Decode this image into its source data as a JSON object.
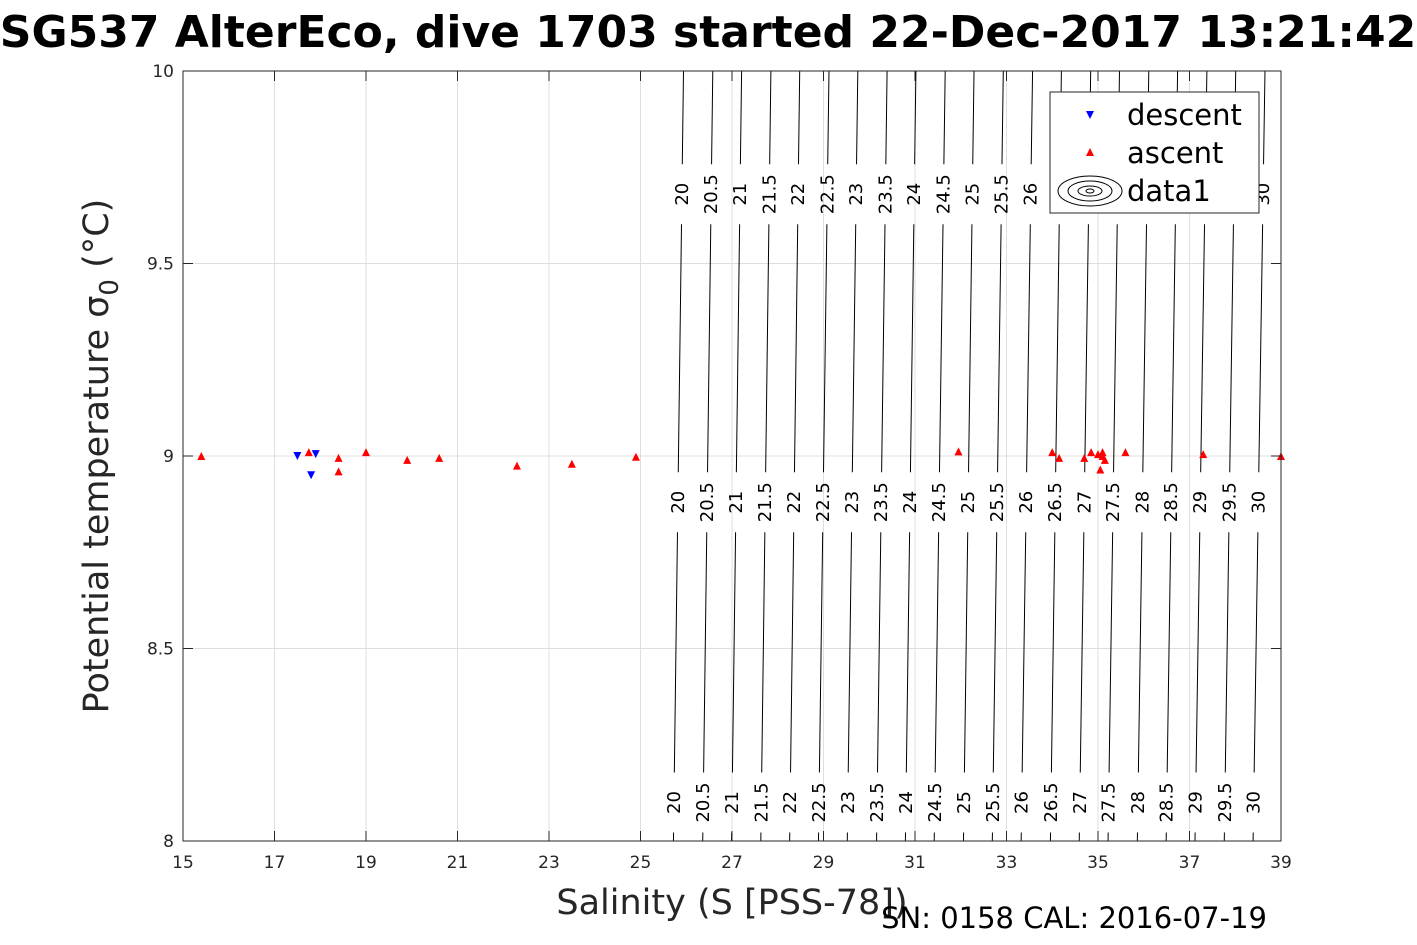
{
  "title": "SG537 AlterEco, dive 1703 started 22-Dec-2017 13:21:42",
  "footer": "SN: 0158  CAL: 2016-07-19",
  "chart_data": {
    "type": "scatter",
    "title": "SG537 AlterEco, dive 1703 started 22-Dec-2017 13:21:42",
    "xlabel": "Salinity (S [PSS-78])",
    "ylabel_main": "Potential temperature σ",
    "ylabel_sub": "0",
    "ylabel_unit": " (°C)",
    "xlim": [
      15,
      39
    ],
    "ylim": [
      8,
      10
    ],
    "xticks": [
      15,
      17,
      19,
      21,
      23,
      25,
      27,
      29,
      31,
      33,
      35,
      37,
      39
    ],
    "yticks": [
      8,
      8.5,
      9,
      9.5,
      10
    ],
    "ytick_labels": [
      "8",
      "8.5",
      "9",
      "9.5",
      "10"
    ],
    "grid": true,
    "legend_position": "top-right",
    "series": [
      {
        "name": "descent",
        "marker": "triangle-down",
        "color": "#0000ff",
        "points": [
          [
            17.5,
            9.0
          ],
          [
            17.9,
            9.005
          ],
          [
            17.8,
            8.95
          ]
        ]
      },
      {
        "name": "ascent",
        "marker": "triangle-up",
        "color": "#ff0000",
        "points": [
          [
            15.4,
            9.0
          ],
          [
            17.75,
            9.01
          ],
          [
            18.4,
            8.96
          ],
          [
            18.4,
            8.995
          ],
          [
            19.0,
            9.01
          ],
          [
            19.9,
            8.99
          ],
          [
            20.6,
            8.995
          ],
          [
            22.3,
            8.975
          ],
          [
            23.5,
            8.98
          ],
          [
            24.9,
            8.998
          ],
          [
            31.95,
            9.012
          ],
          [
            34.0,
            9.01
          ],
          [
            34.15,
            8.995
          ],
          [
            34.7,
            8.995
          ],
          [
            34.85,
            9.01
          ],
          [
            35.0,
            9.005
          ],
          [
            35.05,
            8.965
          ],
          [
            35.1,
            9.01
          ],
          [
            35.15,
            8.99
          ],
          [
            35.1,
            9.0
          ],
          [
            35.6,
            9.01
          ],
          [
            37.3,
            9.005
          ],
          [
            39.0,
            9.0
          ]
        ]
      },
      {
        "name": "data1",
        "marker": "contour",
        "color": "#000000",
        "points": []
      }
    ],
    "contours": [
      {
        "level": 20,
        "x_top": 25.94,
        "x_bottom": 25.72
      },
      {
        "level": 20.5,
        "x_top": 26.58,
        "x_bottom": 26.36
      },
      {
        "level": 21,
        "x_top": 27.21,
        "x_bottom": 26.99
      },
      {
        "level": 21.5,
        "x_top": 27.85,
        "x_bottom": 27.63
      },
      {
        "level": 22,
        "x_top": 28.48,
        "x_bottom": 28.26
      },
      {
        "level": 22.5,
        "x_top": 29.12,
        "x_bottom": 28.89
      },
      {
        "level": 23,
        "x_top": 29.75,
        "x_bottom": 29.52
      },
      {
        "level": 23.5,
        "x_top": 30.39,
        "x_bottom": 30.16
      },
      {
        "level": 24,
        "x_top": 31.02,
        "x_bottom": 30.79
      },
      {
        "level": 24.5,
        "x_top": 31.66,
        "x_bottom": 31.42
      },
      {
        "level": 25,
        "x_top": 32.29,
        "x_bottom": 32.06
      },
      {
        "level": 25.5,
        "x_top": 32.93,
        "x_bottom": 32.69
      },
      {
        "level": 26,
        "x_top": 33.57,
        "x_bottom": 33.32
      },
      {
        "level": 26.5,
        "x_top": 34.2,
        "x_bottom": 33.96
      },
      {
        "level": 27,
        "x_top": 34.84,
        "x_bottom": 34.59
      },
      {
        "level": 27.5,
        "x_top": 35.47,
        "x_bottom": 35.22
      },
      {
        "level": 28,
        "x_top": 36.11,
        "x_bottom": 35.86
      },
      {
        "level": 28.5,
        "x_top": 36.74,
        "x_bottom": 36.49
      },
      {
        "level": 29,
        "x_top": 37.38,
        "x_bottom": 37.12
      },
      {
        "level": 29.5,
        "x_top": 38.01,
        "x_bottom": 37.76
      },
      {
        "level": 30,
        "x_top": 38.65,
        "x_bottom": 38.39
      }
    ],
    "contour_label_rows_y": [
      9.68,
      8.88,
      8.1
    ]
  }
}
